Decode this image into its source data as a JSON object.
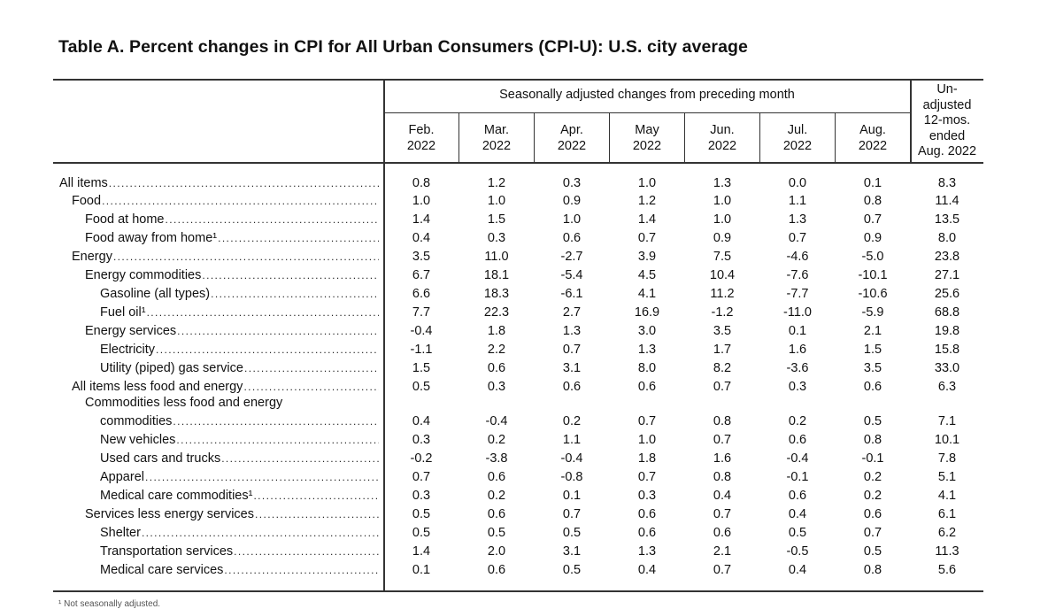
{
  "title": "Table A. Percent changes in CPI for All Urban Consumers (CPI-U): U.S. city average",
  "header": {
    "seasonal_span": "Seasonally adjusted changes from preceding month",
    "months": [
      [
        "Feb.",
        "2022"
      ],
      [
        "Mar.",
        "2022"
      ],
      [
        "Apr.",
        "2022"
      ],
      [
        "May",
        "2022"
      ],
      [
        "Jun.",
        "2022"
      ],
      [
        "Jul.",
        "2022"
      ],
      [
        "Aug.",
        "2022"
      ]
    ],
    "unadjusted": [
      "Un-",
      "adjusted",
      "12-mos.",
      "ended",
      "Aug. 2022"
    ]
  },
  "rows": [
    {
      "label": "All items",
      "indent": 0,
      "values": [
        "0.8",
        "1.2",
        "0.3",
        "1.0",
        "1.3",
        "0.0",
        "0.1",
        "8.3"
      ]
    },
    {
      "label": "Food",
      "indent": 1,
      "values": [
        "1.0",
        "1.0",
        "0.9",
        "1.2",
        "1.0",
        "1.1",
        "0.8",
        "11.4"
      ]
    },
    {
      "label": "Food at home",
      "indent": 2,
      "values": [
        "1.4",
        "1.5",
        "1.0",
        "1.4",
        "1.0",
        "1.3",
        "0.7",
        "13.5"
      ]
    },
    {
      "label": "Food away from home¹",
      "indent": 2,
      "values": [
        "0.4",
        "0.3",
        "0.6",
        "0.7",
        "0.9",
        "0.7",
        "0.9",
        "8.0"
      ]
    },
    {
      "label": "Energy",
      "indent": 1,
      "values": [
        "3.5",
        "11.0",
        "-2.7",
        "3.9",
        "7.5",
        "-4.6",
        "-5.0",
        "23.8"
      ]
    },
    {
      "label": "Energy commodities",
      "indent": 2,
      "values": [
        "6.7",
        "18.1",
        "-5.4",
        "4.5",
        "10.4",
        "-7.6",
        "-10.1",
        "27.1"
      ]
    },
    {
      "label": "Gasoline (all types)",
      "indent": 3,
      "values": [
        "6.6",
        "18.3",
        "-6.1",
        "4.1",
        "11.2",
        "-7.7",
        "-10.6",
        "25.6"
      ]
    },
    {
      "label": "Fuel oil¹",
      "indent": 3,
      "values": [
        "7.7",
        "22.3",
        "2.7",
        "16.9",
        "-1.2",
        "-11.0",
        "-5.9",
        "68.8"
      ]
    },
    {
      "label": "Energy services",
      "indent": 2,
      "values": [
        "-0.4",
        "1.8",
        "1.3",
        "3.0",
        "3.5",
        "0.1",
        "2.1",
        "19.8"
      ]
    },
    {
      "label": "Electricity",
      "indent": 3,
      "values": [
        "-1.1",
        "2.2",
        "0.7",
        "1.3",
        "1.7",
        "1.6",
        "1.5",
        "15.8"
      ]
    },
    {
      "label": "Utility (piped) gas service",
      "indent": 3,
      "values": [
        "1.5",
        "0.6",
        "3.1",
        "8.0",
        "8.2",
        "-3.6",
        "3.5",
        "33.0"
      ]
    },
    {
      "label": "All items less food and energy",
      "indent": 1,
      "values": [
        "0.5",
        "0.3",
        "0.6",
        "0.6",
        "0.7",
        "0.3",
        "0.6",
        "6.3"
      ]
    },
    {
      "label": "Commodities less food and energy",
      "label2": "commodities",
      "indent": 2,
      "values": [
        "0.4",
        "-0.4",
        "0.2",
        "0.7",
        "0.8",
        "0.2",
        "0.5",
        "7.1"
      ]
    },
    {
      "label": "New vehicles",
      "indent": 3,
      "values": [
        "0.3",
        "0.2",
        "1.1",
        "1.0",
        "0.7",
        "0.6",
        "0.8",
        "10.1"
      ]
    },
    {
      "label": "Used cars and trucks",
      "indent": 3,
      "values": [
        "-0.2",
        "-3.8",
        "-0.4",
        "1.8",
        "1.6",
        "-0.4",
        "-0.1",
        "7.8"
      ]
    },
    {
      "label": "Apparel",
      "indent": 3,
      "values": [
        "0.7",
        "0.6",
        "-0.8",
        "0.7",
        "0.8",
        "-0.1",
        "0.2",
        "5.1"
      ]
    },
    {
      "label": "Medical care commodities¹",
      "indent": 3,
      "values": [
        "0.3",
        "0.2",
        "0.1",
        "0.3",
        "0.4",
        "0.6",
        "0.2",
        "4.1"
      ]
    },
    {
      "label": "Services less energy services",
      "indent": 2,
      "values": [
        "0.5",
        "0.6",
        "0.7",
        "0.6",
        "0.7",
        "0.4",
        "0.6",
        "6.1"
      ]
    },
    {
      "label": "Shelter",
      "indent": 3,
      "values": [
        "0.5",
        "0.5",
        "0.5",
        "0.6",
        "0.6",
        "0.5",
        "0.7",
        "6.2"
      ]
    },
    {
      "label": "Transportation services",
      "indent": 3,
      "values": [
        "1.4",
        "2.0",
        "3.1",
        "1.3",
        "2.1",
        "-0.5",
        "0.5",
        "11.3"
      ]
    },
    {
      "label": "Medical care services",
      "indent": 3,
      "values": [
        "0.1",
        "0.6",
        "0.5",
        "0.4",
        "0.7",
        "0.4",
        "0.8",
        "5.6"
      ]
    }
  ],
  "footnote": "¹ Not seasonally adjusted."
}
